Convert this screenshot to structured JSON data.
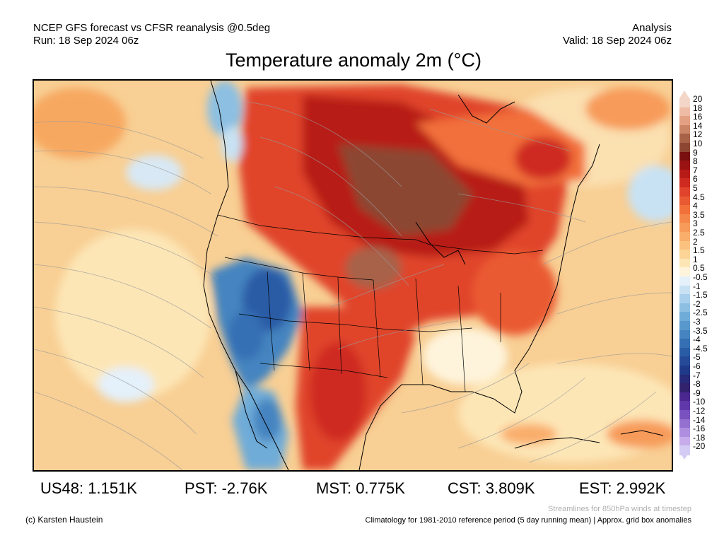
{
  "header": {
    "line1_left": "NCEP GFS forecast vs CFSR reanalysis @0.5deg",
    "line2_left": "Run: 18 Sep 2024 06z",
    "line1_right": "Analysis",
    "line2_right": "Valid: 18 Sep 2024 06z"
  },
  "title": "Temperature anomaly 2m (°C)",
  "map": {
    "region": "North America",
    "variable": "2m temperature anomaly",
    "overlay": "Streamlines for 850hPa winds"
  },
  "colorbar": {
    "labels": [
      "20",
      "18",
      "16",
      "14",
      "12",
      "10",
      "9",
      "8",
      "7",
      "6",
      "5",
      "4.5",
      "4",
      "3.5",
      "3",
      "2.5",
      "2",
      "1.5",
      "1",
      "0.5",
      "-0.5",
      "-1",
      "-1.5",
      "-2",
      "-2.5",
      "-3",
      "-3.5",
      "-4",
      "-4.5",
      "-5",
      "-6",
      "-7",
      "-8",
      "-9",
      "-10",
      "-12",
      "-14",
      "-16",
      "-18",
      "-20"
    ],
    "colors": [
      "#f4d6c8",
      "#eebba4",
      "#e3a083",
      "#c98566",
      "#a86248",
      "#8c4632",
      "#7a1010",
      "#9a1212",
      "#b81a18",
      "#cf2a20",
      "#e0442c",
      "#ea5a32",
      "#f2703a",
      "#f5874a",
      "#f79b5a",
      "#f9ae6c",
      "#fbc27f",
      "#fcd496",
      "#fde6b6",
      "#fef4dc",
      "#e4f0fa",
      "#c8e2f4",
      "#a8d0ec",
      "#8cbfe2",
      "#70acd8",
      "#5898cc",
      "#4584c0",
      "#3570b4",
      "#2a5ca6",
      "#244a98",
      "#1f3a88",
      "#262a78",
      "#32226e",
      "#4a2890",
      "#6038aa",
      "#7a52c0",
      "#9470d0",
      "#ae8ede",
      "#c6acea",
      "#d4ccf4"
    ]
  },
  "stats": {
    "us48": "US48: 1.151K",
    "pst": "PST: -2.76K",
    "mst": "MST: 0.775K",
    "cst": "CST: 3.809K",
    "est": "EST: 2.992K"
  },
  "footer": {
    "credit": "(c) Karsten Haustein",
    "streamlines": "Streamlines for 850hPa winds at timestep",
    "climatology": "Climatology for 1981-2010 reference period (5 day running mean) | Approx. grid box anomalies"
  }
}
